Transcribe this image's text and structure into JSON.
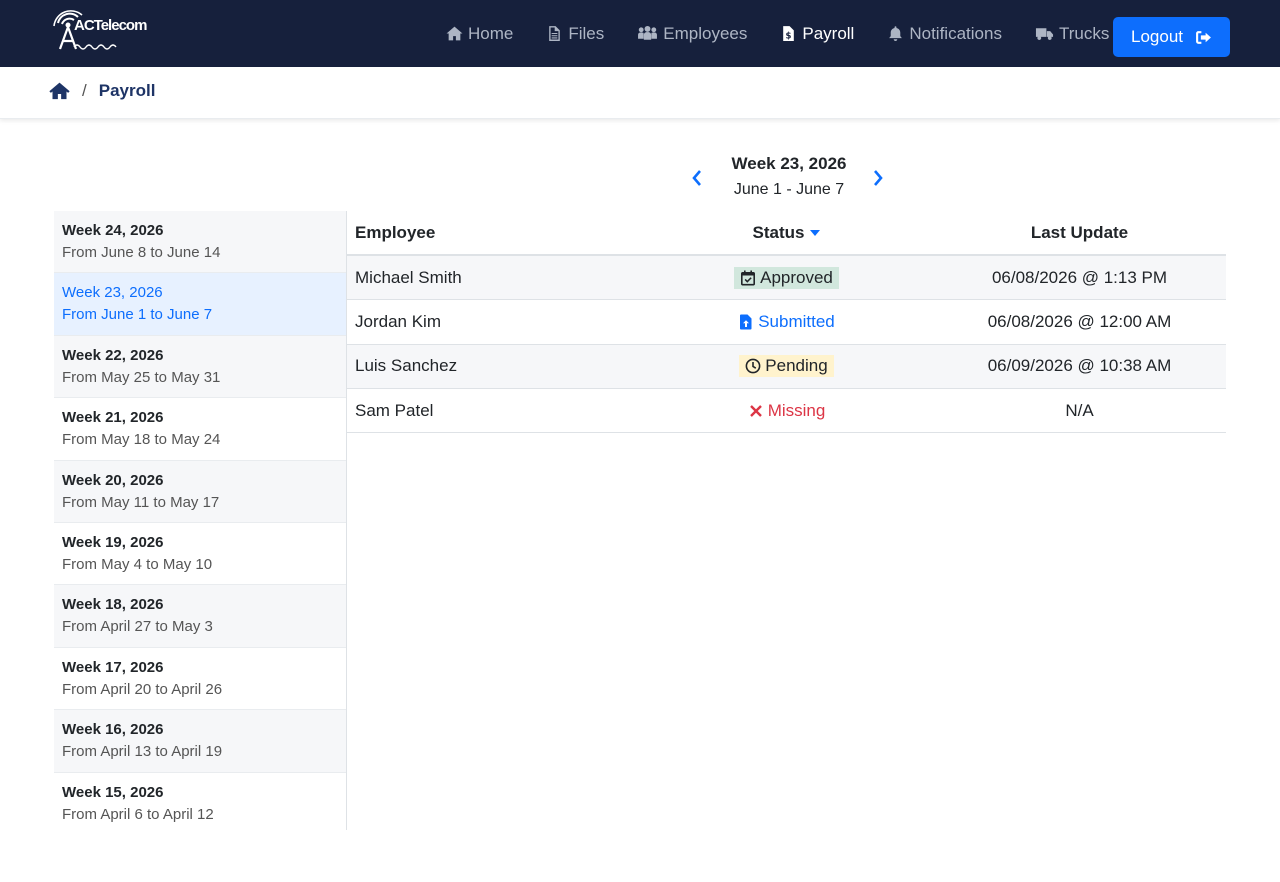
{
  "brand": {
    "logo_text": "ACTelecom"
  },
  "nav": {
    "items": [
      {
        "label": "Home",
        "icon": "home-icon"
      },
      {
        "label": "Files",
        "icon": "file-icon"
      },
      {
        "label": "Employees",
        "icon": "users-icon"
      },
      {
        "label": "Payroll",
        "icon": "invoice-icon",
        "active": true
      },
      {
        "label": "Notifications",
        "icon": "bell-icon"
      },
      {
        "label": "Trucks",
        "icon": "truck-icon"
      }
    ],
    "logout_label": "Logout"
  },
  "breadcrumb": {
    "separator": "/",
    "current": "Payroll"
  },
  "week_header": {
    "title": "Week 23, 2026",
    "range": "June 1 - June 7"
  },
  "weeks": [
    {
      "title": "Week 24, 2026",
      "range": "From June 8 to June 14"
    },
    {
      "title": "Week 23, 2026",
      "range": "From June 1 to June 7",
      "selected": true
    },
    {
      "title": "Week 22, 2026",
      "range": "From May 25 to May 31"
    },
    {
      "title": "Week 21, 2026",
      "range": "From May 18 to May 24"
    },
    {
      "title": "Week 20, 2026",
      "range": "From May 11 to May 17"
    },
    {
      "title": "Week 19, 2026",
      "range": "From May 4 to May 10"
    },
    {
      "title": "Week 18, 2026",
      "range": "From April 27 to May 3"
    },
    {
      "title": "Week 17, 2026",
      "range": "From April 20 to April 26"
    },
    {
      "title": "Week 16, 2026",
      "range": "From April 13 to April 19"
    },
    {
      "title": "Week 15, 2026",
      "range": "From April 6 to April 12"
    }
  ],
  "table": {
    "headers": {
      "employee": "Employee",
      "status": "Status",
      "last_update": "Last Update"
    },
    "rows": [
      {
        "employee": "Michael Smith",
        "status": "Approved",
        "last_update": "06/08/2026 @ 1:13 PM"
      },
      {
        "employee": "Jordan Kim",
        "status": "Submitted",
        "last_update": "06/08/2026 @ 12:00 AM"
      },
      {
        "employee": "Luis Sanchez",
        "status": "Pending",
        "last_update": "06/09/2026 @ 10:38 AM"
      },
      {
        "employee": "Sam Patel",
        "status": "Missing",
        "last_update": "N/A"
      }
    ]
  },
  "colors": {
    "navbar": "#16203c",
    "accent": "#0d6efd",
    "approved_bg": "#d1e7dd",
    "pending_bg": "#fff3cd",
    "missing": "#dc3545"
  }
}
